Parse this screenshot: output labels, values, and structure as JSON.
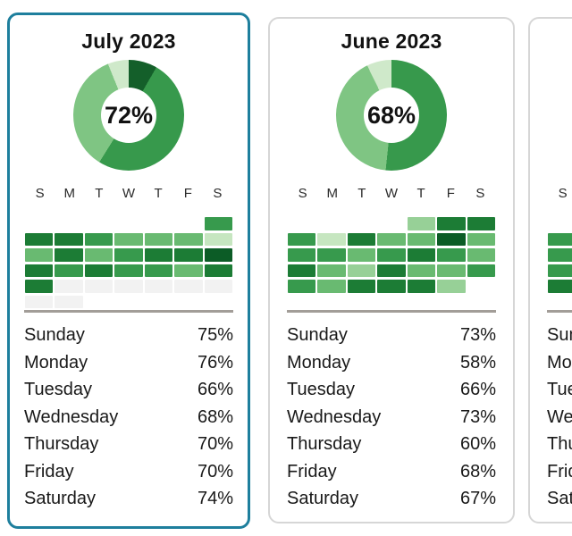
{
  "colors": {
    "selected_border": "#1e7f9d",
    "card_border": "#d6d6d6",
    "divider": "#a29d98",
    "levels": {
      "darkest": "#0c5c26",
      "dark": "#1c7c35",
      "medium": "#379a4d",
      "mlight": "#69ba71",
      "light": "#97d097",
      "pale": "#c6e6c0",
      "future": "#f2f2f2"
    }
  },
  "day_header": [
    "S",
    "M",
    "T",
    "W",
    "T",
    "F",
    "S"
  ],
  "cards": [
    {
      "title": "July 2023",
      "selected": true,
      "donut": {
        "percent_label": "72%",
        "segments": [
          {
            "color": "#145f2a",
            "deg": 30
          },
          {
            "color": "#37994c",
            "deg": 182
          },
          {
            "color": "#7fc583",
            "deg": 126
          },
          {
            "color": "#cfe9ca",
            "deg": 22
          }
        ]
      },
      "heatmap": [
        [
          null,
          null,
          null,
          null,
          null,
          null,
          "medium"
        ],
        [
          "dark",
          "dark",
          "medium",
          "mlight",
          "mlight",
          "mlight",
          "pale"
        ],
        [
          "mlight",
          "dark",
          "mlight",
          "medium",
          "dark",
          "dark",
          "darkest"
        ],
        [
          "dark",
          "medium",
          "dark",
          "medium",
          "medium",
          "mlight",
          "dark"
        ],
        [
          "dark",
          "future",
          "future",
          "future",
          "future",
          "future",
          "future"
        ],
        [
          "future",
          "future",
          null,
          null,
          null,
          null,
          null
        ]
      ],
      "days": [
        {
          "label": "Sunday",
          "value": "75%"
        },
        {
          "label": "Monday",
          "value": "76%"
        },
        {
          "label": "Tuesday",
          "value": "66%"
        },
        {
          "label": "Wednesday",
          "value": "68%"
        },
        {
          "label": "Thursday",
          "value": "70%"
        },
        {
          "label": "Friday",
          "value": "70%"
        },
        {
          "label": "Saturday",
          "value": "74%"
        }
      ]
    },
    {
      "title": "June 2023",
      "selected": false,
      "donut": {
        "percent_label": "68%",
        "segments": [
          {
            "color": "#37994c",
            "deg": 186
          },
          {
            "color": "#7fc583",
            "deg": 148
          },
          {
            "color": "#cfe9ca",
            "deg": 26
          }
        ]
      },
      "heatmap": [
        [
          null,
          null,
          null,
          null,
          "light",
          "dark",
          "dark"
        ],
        [
          "medium",
          "pale",
          "dark",
          "mlight",
          "mlight",
          "darkest",
          "mlight"
        ],
        [
          "medium",
          "medium",
          "mlight",
          "medium",
          "dark",
          "medium",
          "mlight"
        ],
        [
          "dark",
          "mlight",
          "light",
          "dark",
          "mlight",
          "mlight",
          "medium"
        ],
        [
          "medium",
          "mlight",
          "dark",
          "dark",
          "dark",
          "light",
          null
        ]
      ],
      "days": [
        {
          "label": "Sunday",
          "value": "73%"
        },
        {
          "label": "Monday",
          "value": "58%"
        },
        {
          "label": "Tuesday",
          "value": "66%"
        },
        {
          "label": "Wednesday",
          "value": "73%"
        },
        {
          "label": "Thursday",
          "value": "60%"
        },
        {
          "label": "Friday",
          "value": "68%"
        },
        {
          "label": "Saturday",
          "value": "67%"
        }
      ]
    },
    {
      "title": "",
      "selected": false,
      "donut": {
        "percent_label": "",
        "segments": []
      },
      "heatmap": [
        [
          null,
          null,
          null,
          null,
          null,
          null,
          null
        ],
        [
          "medium",
          null,
          null,
          null,
          null,
          null,
          null
        ],
        [
          "medium",
          null,
          null,
          null,
          null,
          null,
          null
        ],
        [
          "medium",
          null,
          null,
          null,
          null,
          null,
          null
        ],
        [
          "dark",
          null,
          null,
          null,
          null,
          null,
          null
        ]
      ],
      "days": [
        {
          "label": "Sunday",
          "value": ""
        },
        {
          "label": "Monday",
          "value": ""
        },
        {
          "label": "Tuesday",
          "value": ""
        },
        {
          "label": "Wednesday",
          "value": ""
        },
        {
          "label": "Thursday",
          "value": ""
        },
        {
          "label": "Friday",
          "value": ""
        },
        {
          "label": "Saturday",
          "value": ""
        }
      ]
    }
  ],
  "chart_data": [
    {
      "month": "July 2023",
      "donut": {
        "type": "pie",
        "center_label": "72%",
        "overall_completion_pct": 72,
        "slices_pct": [
          8,
          51,
          35,
          6
        ],
        "slice_colors": [
          "#145f2a",
          "#37994c",
          "#7fc583",
          "#cfe9ca"
        ]
      },
      "weekday_completion": {
        "type": "table",
        "categories": [
          "Sunday",
          "Monday",
          "Tuesday",
          "Wednesday",
          "Thursday",
          "Friday",
          "Saturday"
        ],
        "values": [
          75,
          76,
          66,
          68,
          70,
          70,
          74
        ]
      },
      "calendar_heatmap": {
        "type": "heatmap",
        "columns": [
          "S",
          "M",
          "T",
          "W",
          "T",
          "F",
          "S"
        ],
        "rows": [
          [
            null,
            null,
            null,
            null,
            null,
            null,
            "medium"
          ],
          [
            "dark",
            "dark",
            "medium",
            "mlight",
            "mlight",
            "mlight",
            "pale"
          ],
          [
            "mlight",
            "dark",
            "mlight",
            "medium",
            "dark",
            "dark",
            "darkest"
          ],
          [
            "dark",
            "medium",
            "dark",
            "medium",
            "medium",
            "mlight",
            "dark"
          ],
          [
            "dark",
            "future",
            "future",
            "future",
            "future",
            "future",
            "future"
          ],
          [
            "future",
            "future",
            null,
            null,
            null,
            null,
            null
          ]
        ]
      }
    },
    {
      "month": "June 2023",
      "donut": {
        "type": "pie",
        "center_label": "68%",
        "overall_completion_pct": 68,
        "slices_pct": [
          52,
          41,
          7
        ],
        "slice_colors": [
          "#37994c",
          "#7fc583",
          "#cfe9ca"
        ]
      },
      "weekday_completion": {
        "type": "table",
        "categories": [
          "Sunday",
          "Monday",
          "Tuesday",
          "Wednesday",
          "Thursday",
          "Friday",
          "Saturday"
        ],
        "values": [
          73,
          58,
          66,
          73,
          60,
          68,
          67
        ]
      },
      "calendar_heatmap": {
        "type": "heatmap",
        "columns": [
          "S",
          "M",
          "T",
          "W",
          "T",
          "F",
          "S"
        ],
        "rows": [
          [
            null,
            null,
            null,
            null,
            "light",
            "dark",
            "dark"
          ],
          [
            "medium",
            "pale",
            "dark",
            "mlight",
            "mlight",
            "darkest",
            "mlight"
          ],
          [
            "medium",
            "medium",
            "mlight",
            "medium",
            "dark",
            "medium",
            "mlight"
          ],
          [
            "dark",
            "mlight",
            "light",
            "dark",
            "mlight",
            "mlight",
            "medium"
          ],
          [
            "medium",
            "mlight",
            "dark",
            "dark",
            "dark",
            "light",
            null
          ]
        ]
      }
    },
    {
      "month": "cropped card (only left edge visible)",
      "calendar_heatmap": {
        "type": "heatmap",
        "columns": [
          "S"
        ],
        "rows": [
          [
            null
          ],
          [
            "medium"
          ],
          [
            "medium"
          ],
          [
            "medium"
          ],
          [
            "dark"
          ]
        ]
      },
      "weekday_completion": {
        "type": "table",
        "categories": [
          "Sunday",
          "Monday",
          "Tuesday",
          "Wednesday",
          "Thursday",
          "Friday",
          "Saturday"
        ],
        "values": []
      }
    }
  ]
}
